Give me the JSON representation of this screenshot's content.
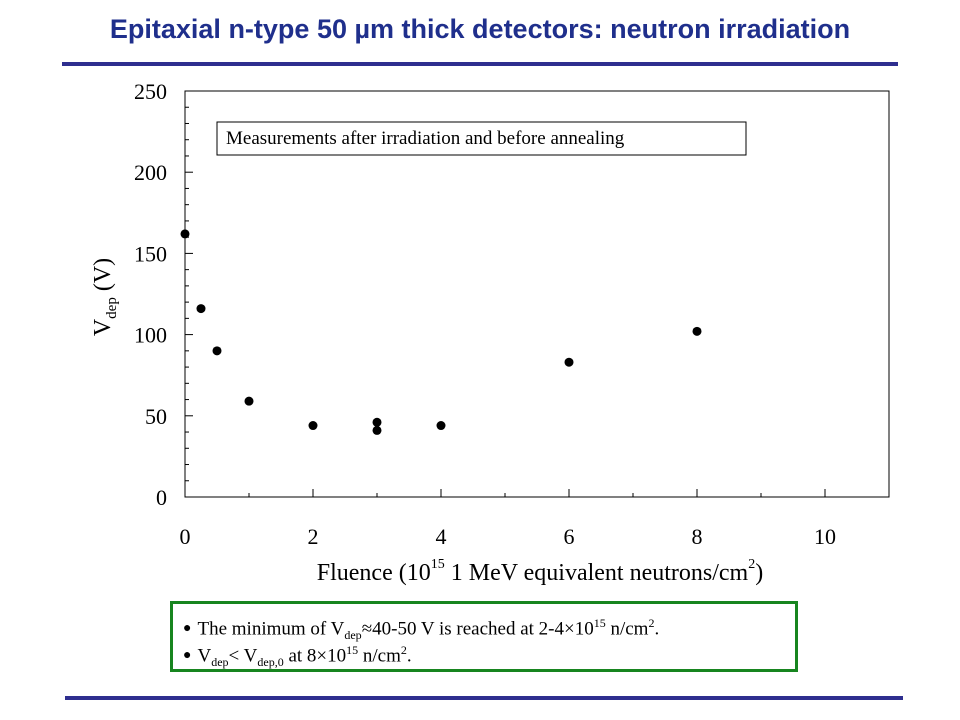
{
  "slide": {
    "title": "Epitaxial n-type 50 µm thick detectors: neutron irradiation",
    "accent_color": "#1f2f8c",
    "rule_color": "#2e2e8f",
    "box_border_color": "#17851f"
  },
  "chart_data": {
    "type": "scatter",
    "annotation": "Measurements after irradiation and before annealing",
    "xlabel": "Fluence (10^15 1 MeV equivalent neutrons/cm^2)",
    "ylabel": "V_dep (V)",
    "xlim": [
      0,
      11
    ],
    "ylim": [
      0,
      250
    ],
    "x_ticks": [
      0,
      2,
      4,
      6,
      8,
      10
    ],
    "y_ticks": [
      0,
      50,
      100,
      150,
      200,
      250
    ],
    "grid": false,
    "series": [
      {
        "points": [
          {
            "x": 0,
            "y": 162
          },
          {
            "x": 0.25,
            "y": 116
          },
          {
            "x": 0.5,
            "y": 90
          },
          {
            "x": 1,
            "y": 59
          },
          {
            "x": 2,
            "y": 44
          },
          {
            "x": 3,
            "y": 46
          },
          {
            "x": 3,
            "y": 41
          },
          {
            "x": 4,
            "y": 44
          },
          {
            "x": 6,
            "y": 83
          },
          {
            "x": 8,
            "y": 102
          }
        ]
      }
    ]
  },
  "notes": {
    "bullet": "●",
    "line1": {
      "text_a": "The minimum of V",
      "sub_a": "dep",
      "text_b": "≈40-50 V is reached at 2-4×10",
      "sup_b": "15",
      "text_c": " n/cm",
      "sup_c": "2",
      "text_d": "."
    },
    "line2": {
      "text_a": "V",
      "sub_a": "dep",
      "text_b": "< V",
      "sub_b": "dep,0",
      "text_c": " at 8×10",
      "sup_c": "15",
      "text_d": " n/cm",
      "sup_d": "2",
      "text_e": "."
    }
  },
  "axis_text": {
    "y_main": "V",
    "y_sub": "dep",
    "y_unit": " (V)",
    "x_pre": "Fluence (10",
    "x_sup": "15",
    "x_mid": " 1 MeV equivalent neutrons/cm",
    "x_sup2": "2",
    "x_post": ")"
  }
}
